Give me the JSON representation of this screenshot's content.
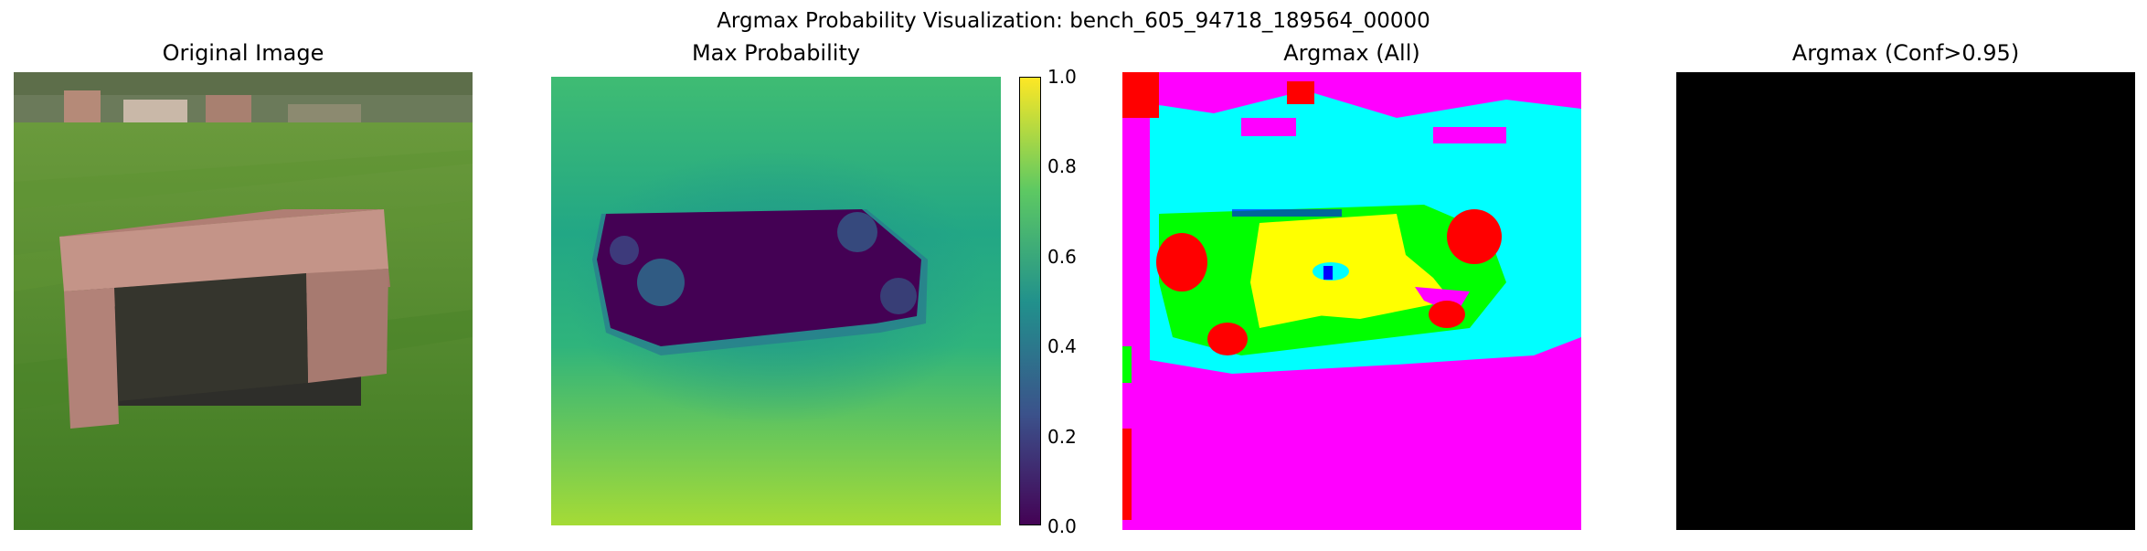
{
  "figure": {
    "title": "Argmax Probability Visualization: bench_605_94718_189564_00000"
  },
  "panels": [
    {
      "title": "Original Image"
    },
    {
      "title": "Max Probability"
    },
    {
      "title": "Argmax (All)"
    },
    {
      "title": "Argmax (Conf>0.95)"
    }
  ],
  "colorbar": {
    "ticks": [
      "0.0",
      "0.2",
      "0.4",
      "0.6",
      "0.8",
      "1.0"
    ],
    "colormap": "viridis",
    "range": [
      0.0,
      1.0
    ]
  },
  "colors": {
    "grass": "#4f8a2e",
    "bench": "#b98a80",
    "viridis_low": "#440154",
    "viridis_mid": "#21918c",
    "viridis_high": "#fde725",
    "seg_cyan": "#00ffff",
    "seg_magenta": "#ff00ff",
    "seg_yellow": "#ffff00",
    "seg_green": "#00ff00",
    "seg_red": "#ff0000",
    "seg_blue": "#0000ff",
    "black": "#000000"
  }
}
